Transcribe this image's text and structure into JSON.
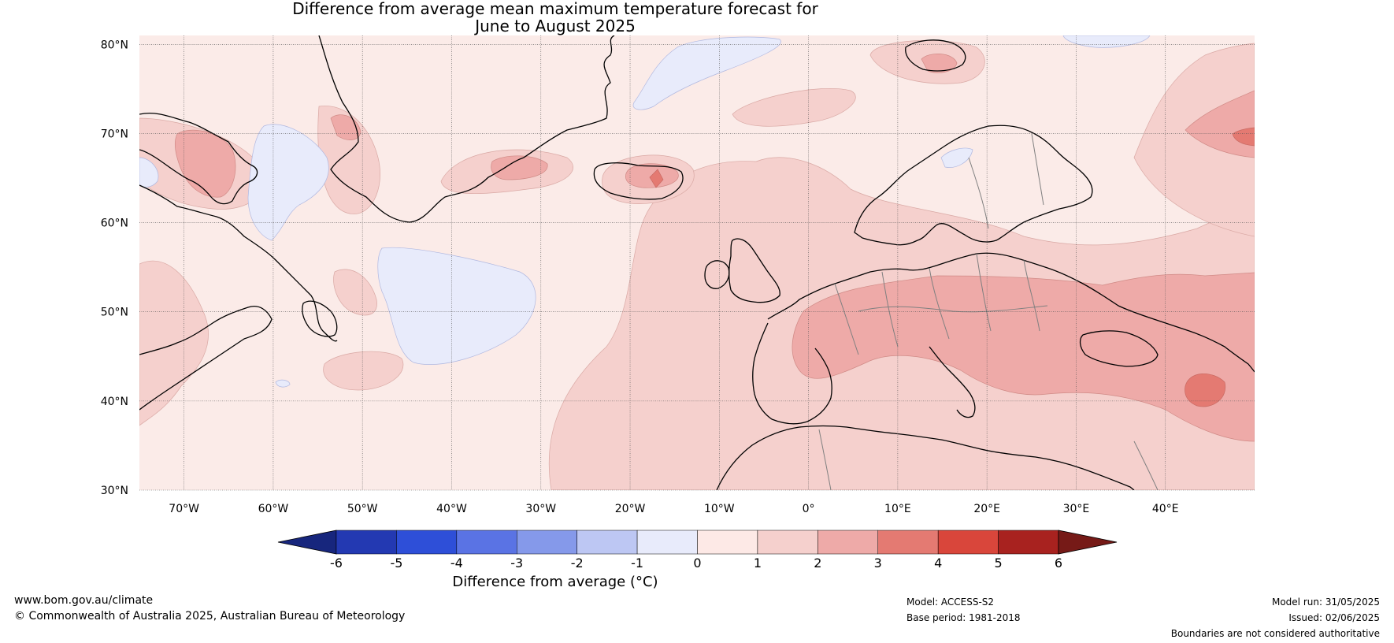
{
  "title": {
    "line1": "Difference from average mean maximum temperature forecast for",
    "line2": "June to August 2025"
  },
  "map": {
    "lon_range": [
      -75,
      50
    ],
    "lat_range": [
      30,
      81
    ],
    "lat_ticks": [
      {
        "value": 30,
        "label": "30°N"
      },
      {
        "value": 40,
        "label": "40°N"
      },
      {
        "value": 50,
        "label": "50°N"
      },
      {
        "value": 60,
        "label": "60°N"
      },
      {
        "value": 70,
        "label": "70°N"
      },
      {
        "value": 80,
        "label": "80°N"
      }
    ],
    "lon_ticks": [
      {
        "value": -70,
        "label": "70°W"
      },
      {
        "value": -60,
        "label": "60°W"
      },
      {
        "value": -50,
        "label": "50°W"
      },
      {
        "value": -40,
        "label": "40°W"
      },
      {
        "value": -30,
        "label": "30°W"
      },
      {
        "value": -20,
        "label": "20°W"
      },
      {
        "value": -10,
        "label": "10°W"
      },
      {
        "value": 0,
        "label": "0°"
      },
      {
        "value": 10,
        "label": "10°E"
      },
      {
        "value": 20,
        "label": "20°E"
      },
      {
        "value": 30,
        "label": "30°E"
      },
      {
        "value": 40,
        "label": "40°E"
      }
    ],
    "background_color": "#fbebe8",
    "coastline_color": "#000000",
    "border_color": "#808080",
    "gridline_color": "#555555"
  },
  "colorbar": {
    "label": "Difference from average (°C)",
    "tick_labels": [
      "-6",
      "-5",
      "-4",
      "-3",
      "-2",
      "-1",
      "0",
      "1",
      "2",
      "3",
      "4",
      "5",
      "6"
    ],
    "colors": [
      "#2339b2",
      "#2e4fd8",
      "#5a73e4",
      "#8599ea",
      "#bdc7f3",
      "#e8ebfb",
      "#fde9e6",
      "#f5d0cd",
      "#eeaaa8",
      "#e47a72",
      "#d9463b",
      "#a8221f"
    ],
    "under_color": "#17267d",
    "over_color": "#761a17"
  },
  "footer": {
    "website": "www.bom.gov.au/climate",
    "copyright": "© Commonwealth of Australia 2025, Australian Bureau of Meteorology",
    "model": "Model: ACCESS-S2",
    "base_period": "Base period: 1981-2018",
    "model_run": "Model run: 31/05/2025",
    "issued": "Issued: 02/06/2025",
    "disclaimer": "Boundaries are not considered authoritative"
  }
}
